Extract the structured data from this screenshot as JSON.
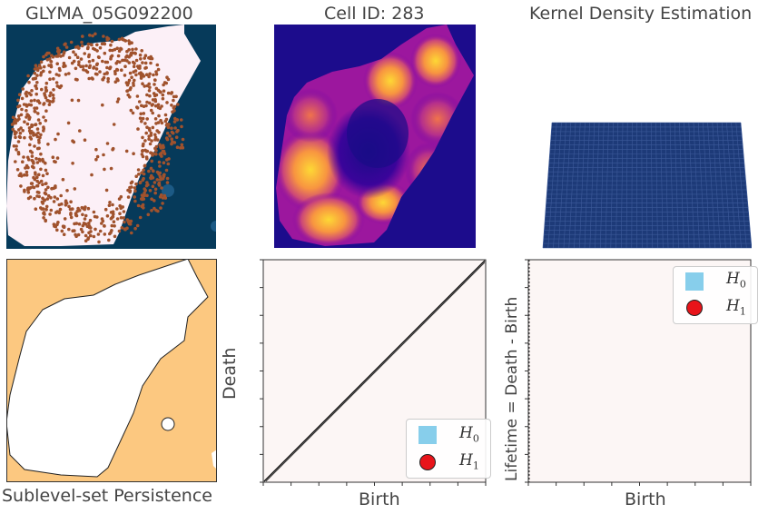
{
  "titles": {
    "gene": "GLYMA_05G092200",
    "cell": "Cell ID: 283",
    "kde": "Kernel Density Estimation",
    "sublevel": "Sublevel-set Persistence"
  },
  "colors": {
    "ocean": "#063a5a",
    "cell_fill": "#fcf0f7",
    "transcript": "#a0522d",
    "plasma_bg": "#1c0c8c",
    "mask_bg": "#fcc880",
    "plot_bg": "#fcf6f5",
    "h0": "#87ceeb",
    "h1": "#e8141a",
    "surface": "#1d3a78"
  },
  "chart_data": [
    {
      "type": "other",
      "name": "transcript-map",
      "title": "GLYMA_05G092200"
    },
    {
      "type": "heatmap",
      "name": "kde-heatmap",
      "title": "Cell ID: 283"
    },
    {
      "type": "area",
      "name": "kde-surface",
      "title": "Kernel Density Estimation"
    },
    {
      "type": "other",
      "name": "sublevel-mask",
      "xlabel": "Sublevel-set Persistence"
    },
    {
      "type": "scatter",
      "name": "persistence-diagram",
      "xlabel": "Birth",
      "ylabel": "Death",
      "legend": "bottom-right",
      "series": [
        {
          "name": "H0",
          "label_main": "H",
          "label_sub": "0",
          "marker": "square",
          "values": []
        },
        {
          "name": "H1",
          "label_main": "H",
          "label_sub": "1",
          "marker": "circle",
          "values": []
        }
      ],
      "diagonal": true
    },
    {
      "type": "scatter",
      "name": "lifetime-diagram",
      "xlabel": "Birth",
      "ylabel": "Lifetime = Death - Birth",
      "legend": "top-right",
      "series": [
        {
          "name": "H0",
          "label_main": "H",
          "label_sub": "0",
          "marker": "square",
          "values": []
        },
        {
          "name": "H1",
          "label_main": "H",
          "label_sub": "1",
          "marker": "circle",
          "values": []
        }
      ]
    }
  ]
}
